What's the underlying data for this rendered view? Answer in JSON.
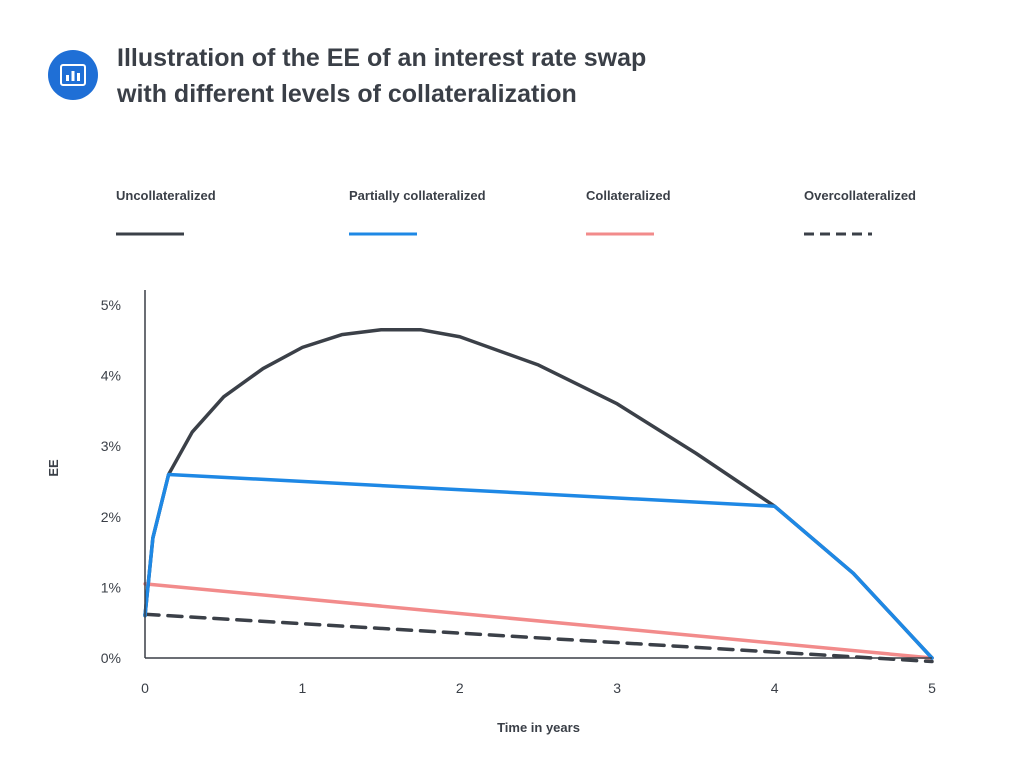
{
  "header": {
    "icon": "bar-chart-icon",
    "title_line1": "Illustration of the EE of an interest rate swap",
    "title_line2": "with different levels of collateralization"
  },
  "colors": {
    "uncollateralized": "#3b4048",
    "partially": "#1e88e5",
    "collateralized": "#f28b8b",
    "overcollateralized": "#3b4048",
    "axis": "#3a3f47",
    "icon_bg": "#1f6fd6"
  },
  "chart_data": {
    "type": "line",
    "xlabel": "Time in years",
    "ylabel": "EE",
    "xlim": [
      0,
      5
    ],
    "ylim": [
      0,
      5
    ],
    "x_ticks": [
      "0",
      "1",
      "2",
      "3",
      "4",
      "5"
    ],
    "y_ticks": [
      "0%",
      "1%",
      "2%",
      "3%",
      "4%",
      "5%"
    ],
    "grid": false,
    "legend_position": "top",
    "series": [
      {
        "name": "Uncollateralized",
        "style": "solid",
        "x": [
          0,
          0.05,
          0.15,
          0.3,
          0.5,
          0.75,
          1.0,
          1.25,
          1.5,
          1.75,
          2.0,
          2.5,
          3.0,
          3.5,
          4.0,
          4.5,
          5.0
        ],
        "y": [
          0.6,
          1.7,
          2.6,
          3.2,
          3.7,
          4.1,
          4.4,
          4.58,
          4.65,
          4.65,
          4.55,
          4.15,
          3.6,
          2.9,
          2.15,
          1.2,
          0.0
        ]
      },
      {
        "name": "Partially collateralized",
        "style": "solid",
        "x": [
          0,
          0.05,
          0.15,
          4.0,
          4.5,
          5.0
        ],
        "y": [
          0.6,
          1.7,
          2.6,
          2.15,
          1.2,
          0.0
        ]
      },
      {
        "name": "Collateralized",
        "style": "solid",
        "x": [
          0,
          5.0
        ],
        "y": [
          1.05,
          0.0
        ]
      },
      {
        "name": "Overcollateralized",
        "style": "dashed",
        "x": [
          0,
          5.0
        ],
        "y": [
          0.62,
          -0.05
        ]
      }
    ]
  }
}
